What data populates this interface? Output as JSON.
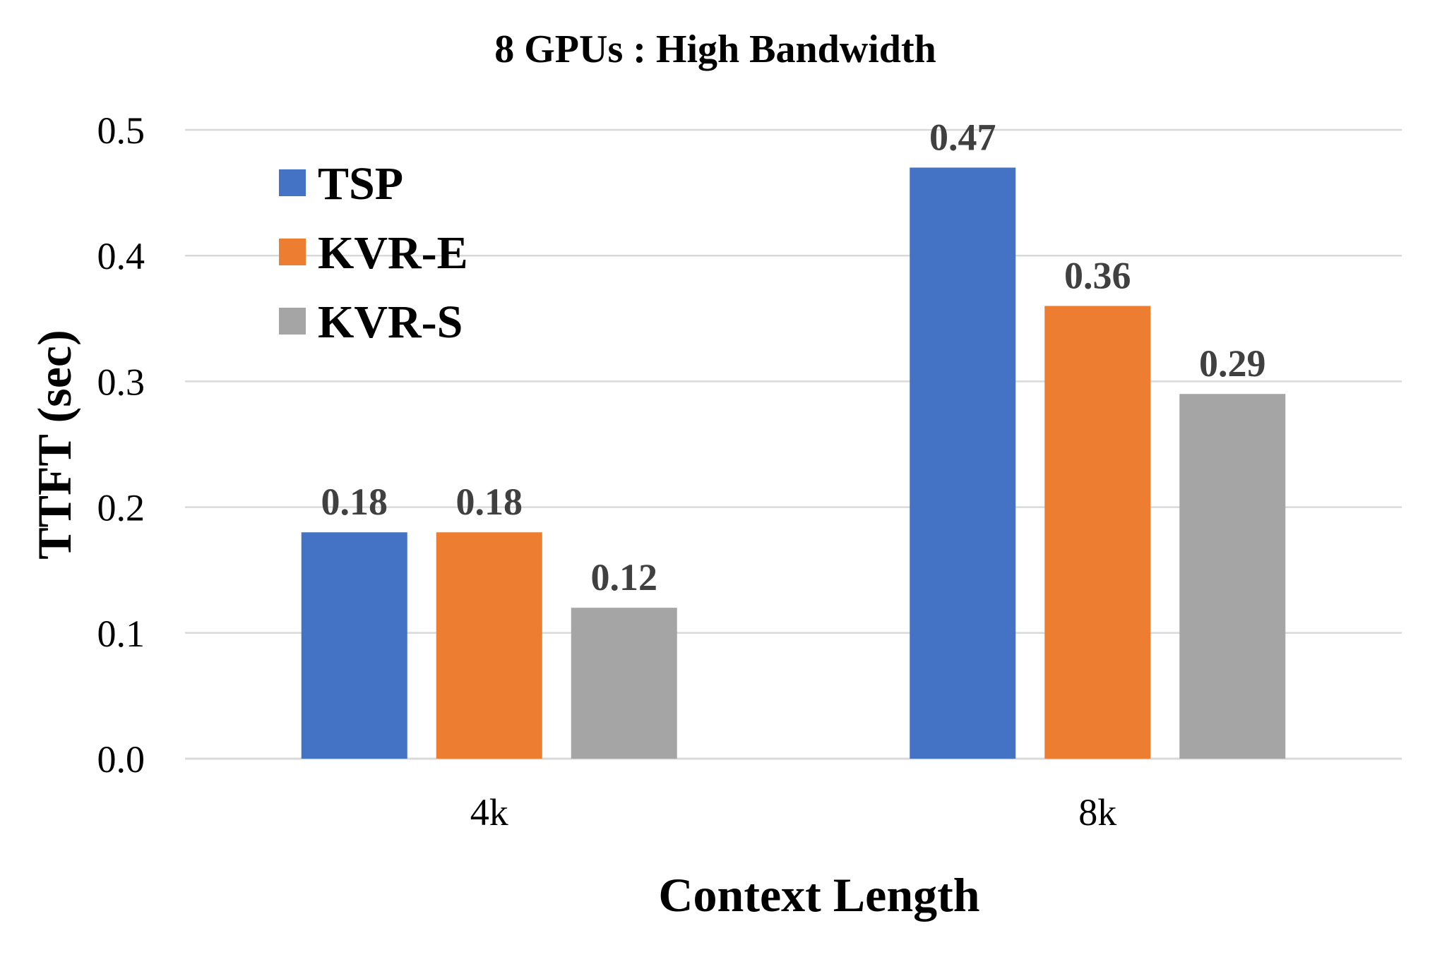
{
  "chart_data": {
    "type": "bar",
    "title": "8 GPUs : High Bandwidth",
    "xlabel": "Context Length",
    "ylabel": "TTFT (sec)",
    "categories": [
      "4k",
      "8k"
    ],
    "series": [
      {
        "name": "TSP",
        "values": [
          0.18,
          0.47
        ],
        "color": "#4472c4"
      },
      {
        "name": "KVR-E",
        "values": [
          0.18,
          0.36
        ],
        "color": "#ed7d31"
      },
      {
        "name": "KVR-S",
        "values": [
          0.12,
          0.29
        ],
        "color": "#a5a5a5"
      }
    ],
    "data_labels": [
      [
        "0.18",
        "0.47"
      ],
      [
        "0.18",
        "0.36"
      ],
      [
        "0.12",
        "0.29"
      ]
    ],
    "ylim": [
      0,
      0.5
    ],
    "yticks": [
      "0.0",
      "0.1",
      "0.2",
      "0.3",
      "0.4",
      "0.5"
    ],
    "grid": true,
    "legend_position": "top-left"
  }
}
